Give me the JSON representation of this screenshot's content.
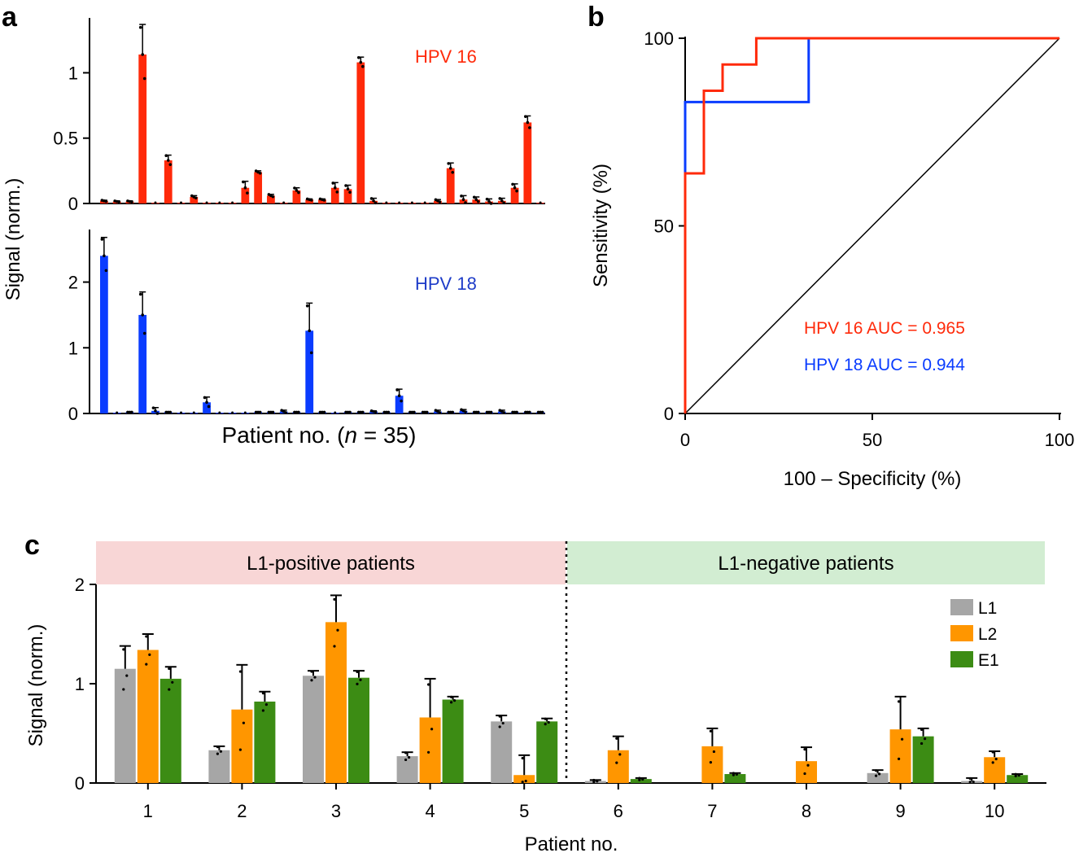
{
  "colors": {
    "hpv16": "#ff2a0a",
    "hpv18": "#0a3cff",
    "l1": "#a6a6a6",
    "l2": "#ff9600",
    "e1": "#3c8c14",
    "pos_band": "#f8d6d6",
    "neg_band": "#d2edd2",
    "axis": "#000000",
    "label16": "#ff2a0a",
    "label18": "#1e3cc8"
  },
  "chart_data": [
    {
      "panel": "a",
      "type": "bar",
      "title": "HPV 16",
      "panel_label": "a",
      "ylabel": "Signal (norm.)",
      "xlabel_prefix": "Patient no. (",
      "xlabel_italic": "n",
      "xlabel_suffix": " = 35)",
      "ylim": [
        0,
        1.42
      ],
      "yticks": [
        0,
        0.5,
        1
      ],
      "ytick_labels": [
        "0",
        "0.5",
        "1"
      ],
      "values": [
        0.02,
        0.015,
        0.015,
        1.14,
        0,
        0.33,
        0,
        0.05,
        0,
        0,
        0,
        0.12,
        0.24,
        0.06,
        0,
        0.1,
        0.03,
        0.03,
        0.12,
        0.11,
        1.08,
        0.02,
        0,
        0,
        0,
        0,
        0.02,
        0.27,
        0.03,
        0.03,
        0.015,
        0.02,
        0.12,
        0.62,
        0
      ],
      "errors": [
        0.005,
        0.005,
        0.005,
        0.23,
        0,
        0.04,
        0,
        0.01,
        0,
        0,
        0,
        0.05,
        0.01,
        0.01,
        0,
        0.02,
        0.005,
        0.005,
        0.04,
        0.03,
        0.04,
        0.02,
        0,
        0,
        0,
        0,
        0.01,
        0.04,
        0.03,
        0.02,
        0.02,
        0.02,
        0.03,
        0.05,
        0
      ]
    },
    {
      "panel": "a",
      "type": "bar",
      "title": "HPV 18",
      "ylim": [
        0,
        2.8
      ],
      "yticks": [
        0,
        1,
        2
      ],
      "ytick_labels": [
        "0",
        "1",
        "2"
      ],
      "values": [
        2.4,
        0,
        0.02,
        1.5,
        0.04,
        0.02,
        0,
        0,
        0.17,
        0,
        0,
        0,
        0.02,
        0.02,
        0.03,
        0.02,
        1.26,
        0.02,
        0,
        0.02,
        0.02,
        0.03,
        0.02,
        0.27,
        0.02,
        0.02,
        0.03,
        0.02,
        0.04,
        0.02,
        0.02,
        0.03,
        0.02,
        0.02,
        0.02
      ],
      "errors": [
        0.28,
        0,
        0,
        0.35,
        0.05,
        0,
        0,
        0,
        0.08,
        0,
        0,
        0,
        0,
        0,
        0.02,
        0,
        0.42,
        0,
        0,
        0,
        0,
        0.01,
        0,
        0.1,
        0,
        0,
        0.02,
        0,
        0.02,
        0,
        0,
        0.02,
        0,
        0,
        0
      ]
    },
    {
      "panel": "b",
      "type": "line",
      "panel_label": "b",
      "xlabel": "100 – Specificity (%)",
      "ylabel": "Sensitivity (%)",
      "xlim": [
        0,
        100
      ],
      "ylim": [
        0,
        100
      ],
      "xticks": [
        0,
        50,
        100
      ],
      "yticks": [
        0,
        50,
        100
      ],
      "tick_labels": [
        "0",
        "50",
        "100"
      ],
      "series": [
        {
          "name": "HPV 16",
          "label": "HPV 16 AUC = 0.965",
          "x": [
            0,
            0,
            5,
            5,
            10,
            10,
            19,
            19,
            100
          ],
          "y": [
            0,
            64,
            64,
            86,
            86,
            93,
            93,
            100,
            100
          ]
        },
        {
          "name": "HPV 18",
          "label": "HPV 18 AUC = 0.944",
          "x": [
            0,
            0,
            33,
            33,
            100
          ],
          "y": [
            64,
            83,
            83,
            100,
            100
          ]
        },
        {
          "name": "reference",
          "x": [
            0,
            100
          ],
          "y": [
            0,
            100
          ]
        }
      ]
    },
    {
      "panel": "c",
      "type": "bar",
      "panel_label": "c",
      "xlabel": "Patient no.",
      "ylabel": "Signal (norm.)",
      "ylim": [
        0,
        2
      ],
      "yticks": [
        0,
        1,
        2
      ],
      "ytick_labels": [
        "0",
        "1",
        "2"
      ],
      "categories": [
        "1",
        "2",
        "3",
        "4",
        "5",
        "6",
        "7",
        "8",
        "9",
        "10"
      ],
      "groups": [
        {
          "label": "L1-positive patients",
          "from": 0,
          "to": 4
        },
        {
          "label": "L1-negative patients",
          "from": 5,
          "to": 9
        }
      ],
      "series": [
        {
          "name": "L1",
          "values": [
            1.15,
            0.33,
            1.08,
            0.27,
            0.62,
            0.02,
            0,
            0,
            0.1,
            0.02
          ],
          "errors": [
            0.23,
            0.04,
            0.05,
            0.04,
            0.06,
            0.01,
            0,
            0,
            0.03,
            0.03
          ]
        },
        {
          "name": "L2",
          "values": [
            1.34,
            0.74,
            1.62,
            0.66,
            0.08,
            0.33,
            0.37,
            0.22,
            0.54,
            0.26
          ],
          "errors": [
            0.16,
            0.45,
            0.27,
            0.39,
            0.2,
            0.14,
            0.18,
            0.14,
            0.33,
            0.06
          ]
        },
        {
          "name": "E1",
          "values": [
            1.05,
            0.82,
            1.06,
            0.84,
            0.62,
            0.04,
            0.09,
            0,
            0.47,
            0.08
          ],
          "errors": [
            0.12,
            0.1,
            0.07,
            0.03,
            0.03,
            0.01,
            0.01,
            0,
            0.08,
            0.01
          ]
        }
      ]
    }
  ]
}
